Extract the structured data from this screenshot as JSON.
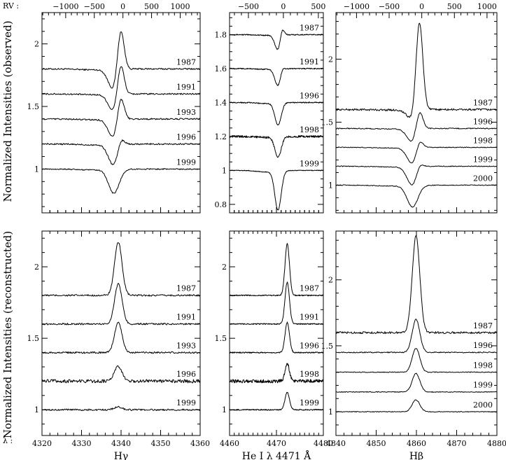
{
  "figure": {
    "ylabel_top": "Normalized Intensities (observed)",
    "ylabel_bottom": "Normalized Intensities (reconstructed)",
    "rv_prefix": "RV :",
    "lambda_prefix": "λ :"
  },
  "chart_data": [
    {
      "id": "hg-obs",
      "type": "line",
      "line": "Hγ",
      "row": "observed",
      "xlim": [
        4320,
        4360
      ],
      "ylim": [
        0.65,
        2.25
      ],
      "yticks": [
        1,
        1.5,
        2
      ],
      "ytick_labels": [
        "1",
        "1.5",
        "2"
      ],
      "rv_ticks": [
        -1000,
        -500,
        0,
        500,
        1000
      ],
      "rv_tick_labels": [
        "−1000",
        "−500",
        "0",
        "500",
        "1000"
      ],
      "line_center": 4340.47,
      "series": [
        {
          "name": "1987",
          "base": 1.8,
          "peak": 0.37,
          "absorb": 0.17,
          "noise": 0.006
        },
        {
          "name": "1991",
          "base": 1.6,
          "peak": 0.28,
          "absorb": 0.14,
          "noise": 0.006
        },
        {
          "name": "1993",
          "base": 1.4,
          "peak": 0.22,
          "absorb": 0.15,
          "noise": 0.006
        },
        {
          "name": "1996",
          "base": 1.2,
          "peak": 0.09,
          "absorb": 0.17,
          "noise": 0.006
        },
        {
          "name": "1999",
          "base": 1.0,
          "peak": 0.0,
          "absorb": 0.19,
          "noise": 0.005
        }
      ]
    },
    {
      "id": "he-obs",
      "type": "line",
      "line": "He I λ 4471 Å",
      "row": "observed",
      "xlim": [
        4460,
        4480
      ],
      "ylim": [
        0.75,
        1.93
      ],
      "yticks": [
        0.8,
        1,
        1.2,
        1.4,
        1.6,
        1.8
      ],
      "ytick_labels": [
        "0.8",
        "1",
        "1.2",
        "1.4",
        "1.6",
        "1.8"
      ],
      "rv_ticks": [
        -500,
        0,
        500
      ],
      "rv_tick_labels": [
        "−500",
        "0",
        "500"
      ],
      "line_center": 4471.48,
      "series": [
        {
          "name": "1987",
          "base": 1.8,
          "peak": 0.06,
          "absorb": 0.09,
          "noise": 0.003
        },
        {
          "name": "1991",
          "base": 1.6,
          "peak": 0.03,
          "absorb": 0.1,
          "noise": 0.003
        },
        {
          "name": "1996",
          "base": 1.4,
          "peak": 0.0,
          "absorb": 0.13,
          "noise": 0.003
        },
        {
          "name": "1998",
          "base": 1.2,
          "peak": 0.0,
          "absorb": 0.12,
          "noise": 0.006
        },
        {
          "name": "1999",
          "base": 1.0,
          "peak": 0.0,
          "absorb": 0.23,
          "noise": 0.002
        }
      ]
    },
    {
      "id": "hb-obs",
      "type": "line",
      "line": "Hβ",
      "row": "observed",
      "xlim": [
        4840,
        4880
      ],
      "ylim": [
        0.78,
        2.37
      ],
      "yticks": [
        1,
        1.5,
        2
      ],
      "ytick_labels": [
        "1",
        "1.5",
        "2"
      ],
      "rv_ticks": [
        -1000,
        -500,
        0,
        500,
        1000
      ],
      "rv_tick_labels": [
        "−1000",
        "−500",
        "0",
        "500",
        "1000"
      ],
      "line_center": 4861.33,
      "series": [
        {
          "name": "1987",
          "base": 1.6,
          "peak": 0.72,
          "absorb": 0.08,
          "noise": 0.008
        },
        {
          "name": "1996",
          "base": 1.45,
          "peak": 0.17,
          "absorb": 0.11,
          "noise": 0.004
        },
        {
          "name": "1998",
          "base": 1.3,
          "peak": 0.09,
          "absorb": 0.13,
          "noise": 0.003
        },
        {
          "name": "1999",
          "base": 1.15,
          "peak": 0.06,
          "absorb": 0.15,
          "noise": 0.003
        },
        {
          "name": "2000",
          "base": 1.0,
          "peak": 0.0,
          "absorb": 0.17,
          "noise": 0.003
        }
      ]
    },
    {
      "id": "hg-rec",
      "type": "line",
      "line": "Hγ",
      "row": "reconstructed",
      "xlim": [
        4320,
        4360
      ],
      "ylim": [
        0.82,
        2.25
      ],
      "yticks": [
        1,
        1.5,
        2
      ],
      "ytick_labels": [
        "1",
        "1.5",
        "2"
      ],
      "xticks": [
        4320,
        4330,
        4340,
        4350,
        4360
      ],
      "xtick_labels": [
        "4320",
        "4330",
        "4340",
        "4350",
        "4360"
      ],
      "xlabel": "Hγ",
      "series": [
        {
          "name": "1987",
          "base": 1.8,
          "peak": 0.37,
          "center": 4339.3,
          "width": 0.95,
          "noise": 0.006
        },
        {
          "name": "1991",
          "base": 1.6,
          "peak": 0.28,
          "center": 4339.3,
          "width": 0.95,
          "noise": 0.006
        },
        {
          "name": "1993",
          "base": 1.4,
          "peak": 0.21,
          "center": 4339.3,
          "width": 0.95,
          "noise": 0.006
        },
        {
          "name": "1996",
          "base": 1.2,
          "peak": 0.1,
          "center": 4339.3,
          "width": 0.95,
          "noise": 0.012
        },
        {
          "name": "1999",
          "base": 1.0,
          "peak": 0.02,
          "center": 4339.3,
          "width": 0.95,
          "noise": 0.006
        }
      ]
    },
    {
      "id": "he-rec",
      "type": "line",
      "line": "He I λ 4471 Å",
      "row": "reconstructed",
      "xlim": [
        4460,
        4480
      ],
      "ylim": [
        0.82,
        2.25
      ],
      "yticks": [
        1,
        1.5,
        2
      ],
      "ytick_labels": [
        "1",
        "1.5",
        "2"
      ],
      "xticks": [
        4460,
        4470,
        4480
      ],
      "xtick_labels": [
        "4460",
        "4470",
        "4480"
      ],
      "xlabel": "He I λ 4471 Å",
      "series": [
        {
          "name": "1987",
          "base": 1.8,
          "peak": 0.36,
          "center": 4472.3,
          "width": 0.95,
          "noise": 0.004
        },
        {
          "name": "1991",
          "base": 1.6,
          "peak": 0.29,
          "center": 4472.3,
          "width": 0.95,
          "noise": 0.004
        },
        {
          "name": "1996",
          "base": 1.4,
          "peak": 0.21,
          "center": 4472.3,
          "width": 0.95,
          "noise": 0.004
        },
        {
          "name": "1998",
          "base": 1.2,
          "peak": 0.12,
          "center": 4472.3,
          "width": 0.95,
          "noise": 0.012
        },
        {
          "name": "1999",
          "base": 1.0,
          "peak": 0.12,
          "center": 4472.3,
          "width": 0.95,
          "noise": 0.004
        }
      ]
    },
    {
      "id": "hb-rec",
      "type": "line",
      "line": "Hβ",
      "row": "reconstructed",
      "xlim": [
        4840,
        4880
      ],
      "ylim": [
        0.82,
        2.37
      ],
      "yticks": [
        1,
        1.5,
        2
      ],
      "ytick_labels": [
        "1",
        "1.5",
        "2"
      ],
      "xticks": [
        4840,
        4850,
        4860,
        4870,
        4880
      ],
      "xtick_labels": [
        "4840",
        "4850",
        "4860",
        "4870",
        "4880"
      ],
      "xlabel": "Hβ",
      "series": [
        {
          "name": "1987",
          "base": 1.6,
          "peak": 0.73,
          "center": 4859.9,
          "width": 0.95,
          "noise": 0.008
        },
        {
          "name": "1996",
          "base": 1.45,
          "peak": 0.25,
          "center": 4859.9,
          "width": 0.95,
          "noise": 0.004
        },
        {
          "name": "1998",
          "base": 1.3,
          "peak": 0.18,
          "center": 4859.9,
          "width": 0.95,
          "noise": 0.003
        },
        {
          "name": "1999",
          "base": 1.15,
          "peak": 0.14,
          "center": 4859.9,
          "width": 0.95,
          "noise": 0.003
        },
        {
          "name": "2000",
          "base": 1.0,
          "peak": 0.09,
          "center": 4859.9,
          "width": 0.95,
          "noise": 0.003
        }
      ]
    }
  ]
}
